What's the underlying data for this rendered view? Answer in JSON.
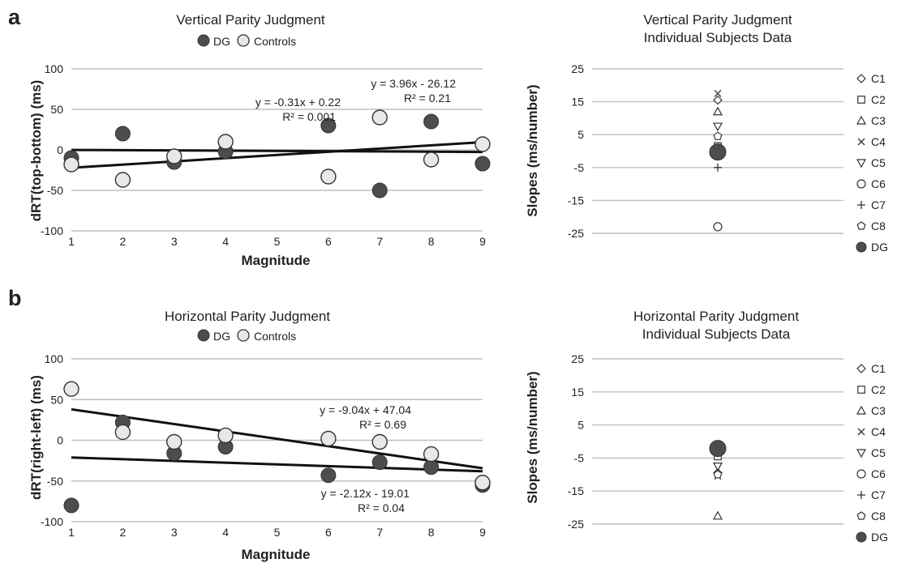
{
  "colors": {
    "dg_fill": "#4d4d4d",
    "controls_fill": "#e8e8e8",
    "marker_stroke": "#333333",
    "grid": "#bfbfbf",
    "regression_line": "#111111"
  },
  "legend_labels": {
    "dg": "DG",
    "controls": "Controls"
  },
  "chart_data": [
    {
      "type": "scatter",
      "panel": "a",
      "title": "Vertical Parity Judgment",
      "xlabel": "Magnitude",
      "ylabel": "dRT(top-bottom) (ms)",
      "xlim": [
        1,
        9
      ],
      "ylim": [
        -100,
        100
      ],
      "xticks": [
        1,
        2,
        3,
        4,
        5,
        6,
        7,
        8,
        9
      ],
      "yticks": [
        -100,
        -50,
        0,
        50,
        100
      ],
      "grid": true,
      "series": [
        {
          "name": "DG",
          "x": [
            1,
            2,
            3,
            4,
            6,
            7,
            8,
            9
          ],
          "y": [
            -10,
            20,
            -15,
            -2,
            30,
            -50,
            35,
            -17
          ]
        },
        {
          "name": "Controls",
          "x": [
            1,
            2,
            3,
            4,
            6,
            7,
            8,
            9
          ],
          "y": [
            -18,
            -37,
            -8,
            10,
            -33,
            40,
            -12,
            7
          ]
        }
      ],
      "regressions": [
        {
          "equation": "y = -0.31x + 0.22",
          "r2": "R² = 0.001",
          "slope": -0.31,
          "intercept": 0.22
        },
        {
          "equation": "y = 3.96x - 26.12",
          "r2": "R² = 0.21",
          "slope": 3.96,
          "intercept": -26.12
        }
      ]
    },
    {
      "type": "scatter",
      "panel": "a",
      "title": "Vertical Parity Judgment",
      "subtitle": "Individual Subjects Data",
      "ylabel": "Slopes (ms/number)",
      "ylim": [
        -25,
        25
      ],
      "yticks": [
        -25,
        -15,
        -5,
        5,
        15,
        25
      ],
      "grid": true,
      "legend_position": "right",
      "points": [
        {
          "name": "C1",
          "marker": "diamond",
          "value": 15.5
        },
        {
          "name": "C2",
          "marker": "square",
          "value": 1.5
        },
        {
          "name": "C3",
          "marker": "triangle-up",
          "value": 12
        },
        {
          "name": "C4",
          "marker": "x",
          "value": 17.5
        },
        {
          "name": "C5",
          "marker": "triangle-down",
          "value": 7.5
        },
        {
          "name": "C6",
          "marker": "circle-open",
          "value": -23
        },
        {
          "name": "C7",
          "marker": "plus",
          "value": -5
        },
        {
          "name": "C8",
          "marker": "pentagon",
          "value": 4.5
        },
        {
          "name": "DG",
          "marker": "circle-filled",
          "value": -0.3
        }
      ]
    },
    {
      "type": "scatter",
      "panel": "b",
      "title": "Horizontal Parity Judgment",
      "xlabel": "Magnitude",
      "ylabel": "dRT(right-left) (ms)",
      "xlim": [
        1,
        9
      ],
      "ylim": [
        -100,
        100
      ],
      "xticks": [
        1,
        2,
        3,
        4,
        5,
        6,
        7,
        8,
        9
      ],
      "yticks": [
        -100,
        -50,
        0,
        50,
        100
      ],
      "grid": true,
      "series": [
        {
          "name": "DG",
          "x": [
            1,
            2,
            3,
            4,
            6,
            7,
            8,
            9
          ],
          "y": [
            -80,
            22,
            -16,
            -8,
            -43,
            -27,
            -33,
            -55
          ]
        },
        {
          "name": "Controls",
          "x": [
            1,
            2,
            3,
            4,
            6,
            7,
            8,
            9
          ],
          "y": [
            63,
            10,
            -2,
            6,
            2,
            -2,
            -17,
            -52
          ]
        }
      ],
      "regressions": [
        {
          "equation": "y = -9.04x + 47.04",
          "r2": "R² = 0.69",
          "slope": -9.04,
          "intercept": 47.04
        },
        {
          "equation": "y = -2.12x - 19.01",
          "r2": "R² = 0.04",
          "slope": -2.12,
          "intercept": -19.01
        }
      ]
    },
    {
      "type": "scatter",
      "panel": "b",
      "title": "Horizontal Parity Judgment",
      "subtitle": "Individual Subjects Data",
      "ylabel": "Slopes (ms/number)",
      "ylim": [
        -25,
        25
      ],
      "yticks": [
        -25,
        -15,
        -5,
        5,
        15,
        25
      ],
      "grid": true,
      "legend_position": "right",
      "points": [
        {
          "name": "C1",
          "marker": "diamond",
          "value": -9.5
        },
        {
          "name": "C2",
          "marker": "square",
          "value": -4.5
        },
        {
          "name": "C3",
          "marker": "triangle-up",
          "value": -22.5
        },
        {
          "name": "C4",
          "marker": "x",
          "value": -10.5
        },
        {
          "name": "C5",
          "marker": "triangle-down",
          "value": -7.5
        },
        {
          "name": "C6",
          "marker": "circle-open",
          "value": -2.5
        },
        {
          "name": "C7",
          "marker": "plus",
          "value": -3.5
        },
        {
          "name": "C8",
          "marker": "pentagon",
          "value": -10
        },
        {
          "name": "DG",
          "marker": "circle-filled",
          "value": -2.1
        }
      ]
    }
  ],
  "panel_labels": [
    "a",
    "b"
  ]
}
